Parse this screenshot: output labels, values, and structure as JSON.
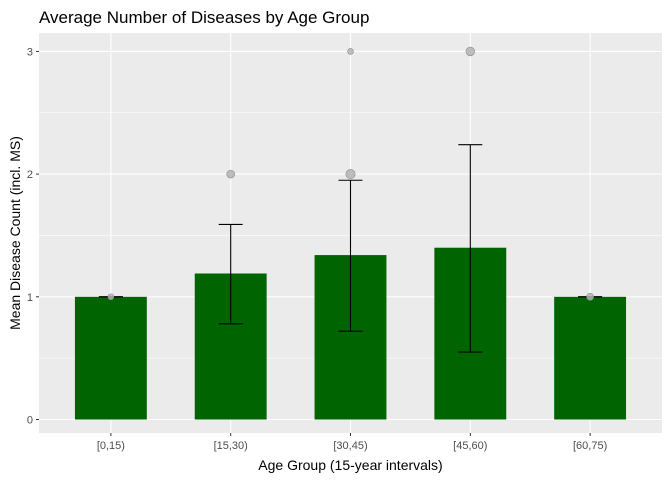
{
  "chart_data": {
    "type": "bar",
    "title": "Average Number of Diseases by Age Group",
    "xlabel": "Age Group (15-year intervals)",
    "ylabel": "Mean Disease Count (incl. MS)",
    "categories": [
      "[0,15)",
      "[15,30)",
      "[30,45)",
      "[45,60)",
      "[60,75)"
    ],
    "values": [
      1.0,
      1.19,
      1.34,
      1.4,
      1.0
    ],
    "error_bars": [
      {
        "low": 1.0,
        "high": 1.0
      },
      {
        "low": 0.78,
        "high": 1.59
      },
      {
        "low": 0.72,
        "high": 1.95
      },
      {
        "low": 0.55,
        "high": 2.24
      },
      {
        "low": 1.0,
        "high": 1.0
      }
    ],
    "points": [
      {
        "category": "[0,15)",
        "y": 1,
        "count": 1
      },
      {
        "category": "[15,30)",
        "y": 2,
        "count": 3
      },
      {
        "category": "[30,45)",
        "y": 2,
        "count": 5
      },
      {
        "category": "[30,45)",
        "y": 3,
        "count": 1
      },
      {
        "category": "[45,60)",
        "y": 3,
        "count": 4
      },
      {
        "category": "[60,75)",
        "y": 1,
        "count": 2
      }
    ],
    "yticks": [
      0,
      1,
      2,
      3
    ],
    "ylim": [
      -0.11,
      3.15
    ],
    "grid": true,
    "colors": {
      "bar": "#006400",
      "panel": "#ebebeb",
      "grid": "#ffffff",
      "error_bar": "#000000",
      "point": "#b3b3b3",
      "point_stroke": "#8c8c8c"
    }
  }
}
